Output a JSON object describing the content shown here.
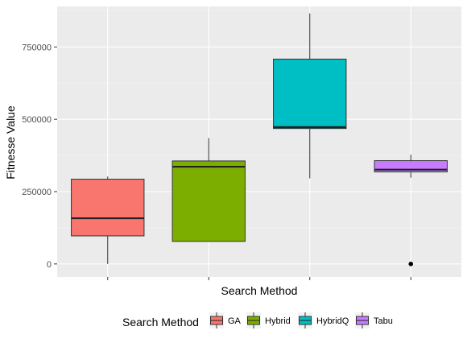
{
  "chart_data": {
    "type": "boxplot",
    "title": "",
    "xlabel": "Search Method",
    "ylabel": "Fitnesse Value",
    "ylim": [
      -45000,
      890000
    ],
    "yticks": [
      0,
      250000,
      500000,
      750000
    ],
    "ytick_labels": [
      "0",
      "250000",
      "500000",
      "750000"
    ],
    "grid": true,
    "legend_placement": "bottom",
    "legend_title": "Search Method",
    "categories": [
      "GA",
      "Hybrid",
      "HybridQ",
      "Tabu"
    ],
    "colors": [
      "#F8766D",
      "#7CAE00",
      "#00BFC4",
      "#C77CFF"
    ],
    "boxes": [
      {
        "name": "GA",
        "whisker_low": 0,
        "q1": 97000,
        "median": 158000,
        "q3": 293000,
        "whisker_high": 302000,
        "outliers": []
      },
      {
        "name": "Hybrid",
        "whisker_low": 78000,
        "q1": 78000,
        "median": 336000,
        "q3": 356000,
        "whisker_high": 435000,
        "outliers": []
      },
      {
        "name": "HybridQ",
        "whisker_low": 296000,
        "q1": 468000,
        "median": 473000,
        "q3": 708000,
        "whisker_high": 866000,
        "outliers": []
      },
      {
        "name": "Tabu",
        "whisker_low": 298000,
        "q1": 318000,
        "median": 326000,
        "q3": 357000,
        "whisker_high": 378000,
        "outliers": [
          0
        ]
      }
    ]
  }
}
